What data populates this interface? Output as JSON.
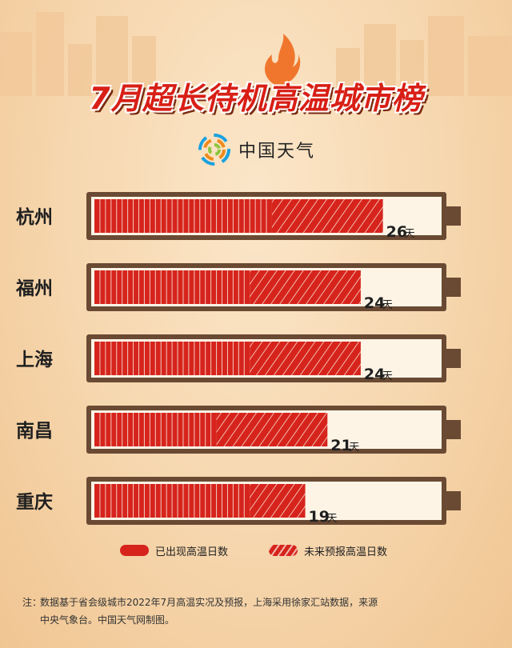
{
  "title": "7月超长待机高温城市榜",
  "brand": {
    "name": "中国天气",
    "logo_icon": "china-weather-logo-icon"
  },
  "colors": {
    "bar": "#d6241c",
    "frame": "#6a4a33",
    "battery_fill": "#fdf4e6",
    "title": "#d81f16"
  },
  "chart_data": {
    "type": "bar",
    "orientation": "horizontal",
    "categories": [
      "杭州",
      "福州",
      "上海",
      "南昌",
      "重庆"
    ],
    "series": [
      {
        "name": "已出现高温日数",
        "values": [
          16,
          14,
          14,
          11,
          14
        ]
      },
      {
        "name": "未来预报高温日数",
        "values": [
          10,
          10,
          10,
          10,
          5
        ]
      }
    ],
    "totals": [
      26,
      24,
      24,
      21,
      19
    ],
    "total_labels": [
      "26",
      "24",
      "24",
      "21",
      "19"
    ],
    "unit": "天",
    "xlim": [
      0,
      31
    ],
    "legend_position": "bottom"
  },
  "legend": {
    "observed": "已出现高温日数",
    "forecast": "未来预报高温日数"
  },
  "note": {
    "prefix": "注：",
    "line1": "数据基于省会级城市2022年7月高温实况及预报，上海采用徐家汇站数据，来源",
    "line2": "中央气象台。中国天气网制图。"
  }
}
